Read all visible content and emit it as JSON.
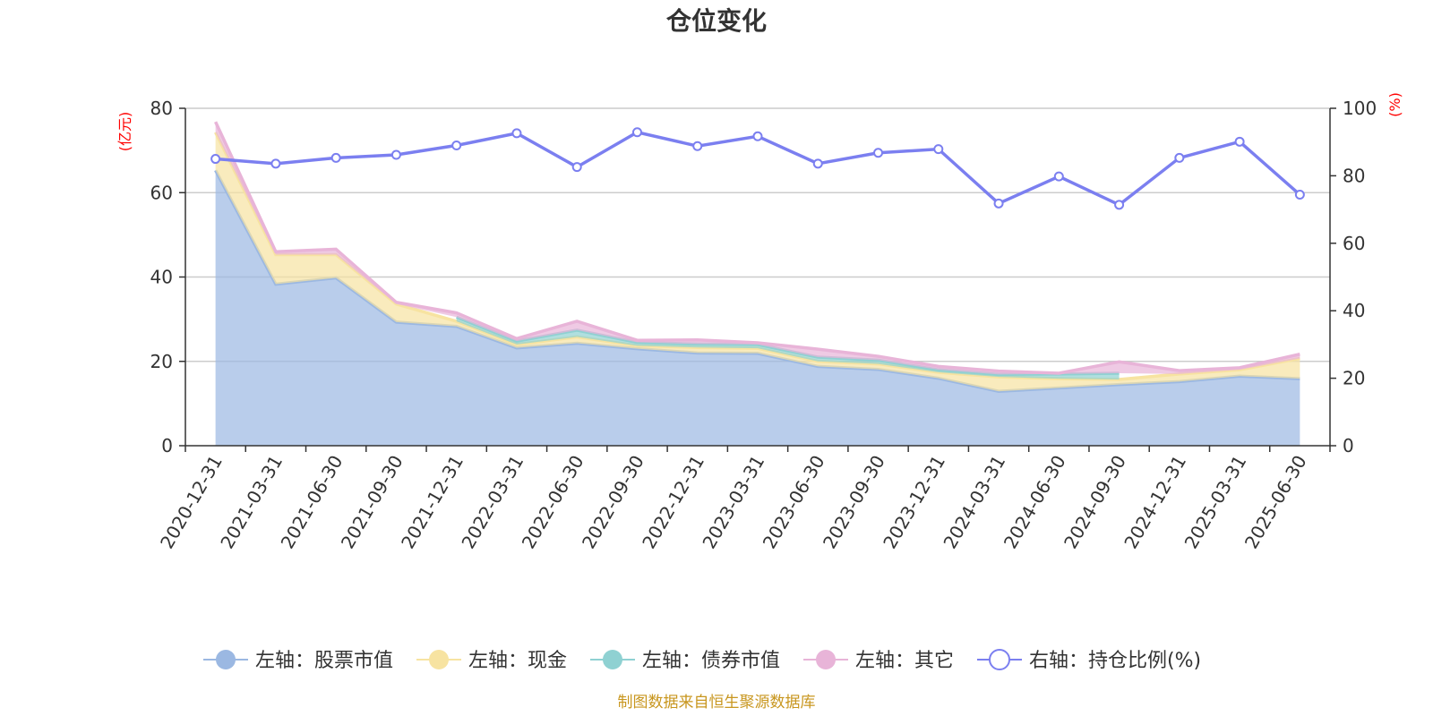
{
  "chart_data": {
    "type": "area",
    "title": "仓位变化",
    "categories": [
      "2020-12-31",
      "2021-03-31",
      "2021-06-30",
      "2021-09-30",
      "2021-12-31",
      "2022-03-31",
      "2022-06-30",
      "2022-09-30",
      "2022-12-31",
      "2023-03-31",
      "2023-06-30",
      "2023-09-30",
      "2023-12-31",
      "2024-03-31",
      "2024-06-30",
      "2024-09-30",
      "2024-12-31",
      "2025-03-31",
      "2025-06-30"
    ],
    "left_axis": {
      "unit": "(亿元)",
      "ylim": [
        0,
        80
      ],
      "ticks": [
        "0",
        "20",
        "40",
        "60",
        "80"
      ]
    },
    "right_axis": {
      "unit": "(%)",
      "ylim": [
        0,
        100
      ],
      "ticks": [
        "0",
        "20",
        "40",
        "60",
        "80",
        "100"
      ]
    },
    "series": [
      {
        "name": "左轴：股票市值",
        "axis": "left",
        "stack": true,
        "color": "#9bb8e2",
        "values": [
          65.3,
          38.3,
          39.8,
          29.3,
          28.3,
          23.2,
          24.3,
          23.0,
          22.0,
          21.9,
          18.8,
          18.1,
          16.0,
          12.9,
          13.7,
          14.5,
          15.2,
          16.5,
          15.9
        ]
      },
      {
        "name": "左轴：现金",
        "axis": "left",
        "stack": true,
        "color": "#f7e3a1",
        "values": [
          9.0,
          7.0,
          5.5,
          4.3,
          1.2,
          0.8,
          1.5,
          0.7,
          1.3,
          1.2,
          1.2,
          1.3,
          1.4,
          3.4,
          2.2,
          1.2,
          1.8,
          1.5,
          4.8
        ]
      },
      {
        "name": "左轴：债券市值",
        "axis": "left",
        "stack": true,
        "color": "#8fd1d2",
        "values": [
          null,
          null,
          null,
          null,
          1.0,
          0.8,
          1.6,
          0.8,
          0.8,
          0.9,
          1.0,
          0.9,
          0.6,
          0.6,
          1.1,
          1.5,
          null,
          null,
          null
        ]
      },
      {
        "name": "左轴：其它",
        "axis": "left",
        "stack": true,
        "color": "#e8b4d8",
        "values": [
          2.5,
          0.7,
          1.3,
          0.4,
          1.0,
          0.6,
          2.1,
          0.5,
          1.0,
          0.4,
          1.9,
          0.9,
          0.8,
          0.8,
          0.2,
          2.7,
          0.8,
          0.5,
          1.0
        ]
      },
      {
        "name": "右轴：持仓比例(%)",
        "axis": "right",
        "type": "line",
        "color": "#7b7ff0",
        "values": [
          85.0,
          83.6,
          85.3,
          86.2,
          89.0,
          92.6,
          82.6,
          92.9,
          88.8,
          91.7,
          83.6,
          86.8,
          87.9,
          71.8,
          79.8,
          71.4,
          85.3,
          90.1,
          74.4
        ]
      }
    ],
    "legend_position": "bottom",
    "grid": true
  },
  "source_note": "制图数据来自恒生聚源数据库"
}
